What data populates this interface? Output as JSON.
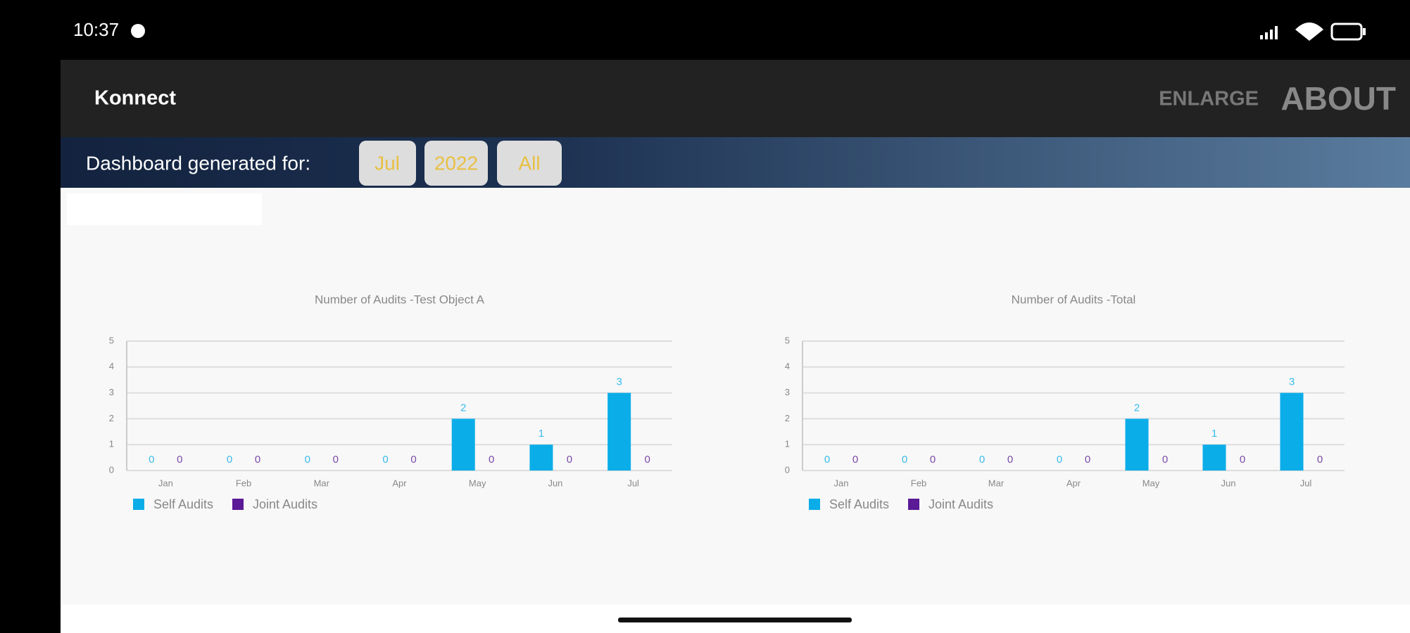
{
  "status_bar": {
    "time": "10:37"
  },
  "app_bar": {
    "title": "Konnect",
    "actions": [
      "ENLARGE",
      "ABOUT"
    ]
  },
  "filter_bar": {
    "label": "Dashboard generated for:",
    "filters": [
      "Jul",
      "2022",
      "All"
    ]
  },
  "chart_data": [
    {
      "type": "bar",
      "title": "Number of Audits -Test Object A",
      "categories": [
        "Jan",
        "Feb",
        "Mar",
        "Apr",
        "May",
        "Jun",
        "Jul"
      ],
      "series": [
        {
          "name": "Self Audits",
          "color": "#0aade8",
          "values": [
            0,
            0,
            0,
            0,
            2,
            1,
            3
          ]
        },
        {
          "name": "Joint Audits",
          "color": "#5b1a96",
          "values": [
            0,
            0,
            0,
            0,
            0,
            0,
            0
          ]
        }
      ],
      "ylim": [
        0,
        5
      ],
      "yticks": [
        0,
        1,
        2,
        3,
        4,
        5
      ],
      "grid": true
    },
    {
      "type": "bar",
      "title": "Number of Audits -Total",
      "categories": [
        "Jan",
        "Feb",
        "Mar",
        "Apr",
        "May",
        "Jun",
        "Jul"
      ],
      "series": [
        {
          "name": "Self Audits",
          "color": "#0aade8",
          "values": [
            0,
            0,
            0,
            0,
            2,
            1,
            3
          ]
        },
        {
          "name": "Joint Audits",
          "color": "#5b1a96",
          "values": [
            0,
            0,
            0,
            0,
            0,
            0,
            0
          ]
        }
      ],
      "ylim": [
        0,
        5
      ],
      "yticks": [
        0,
        1,
        2,
        3,
        4,
        5
      ],
      "grid": true
    }
  ]
}
